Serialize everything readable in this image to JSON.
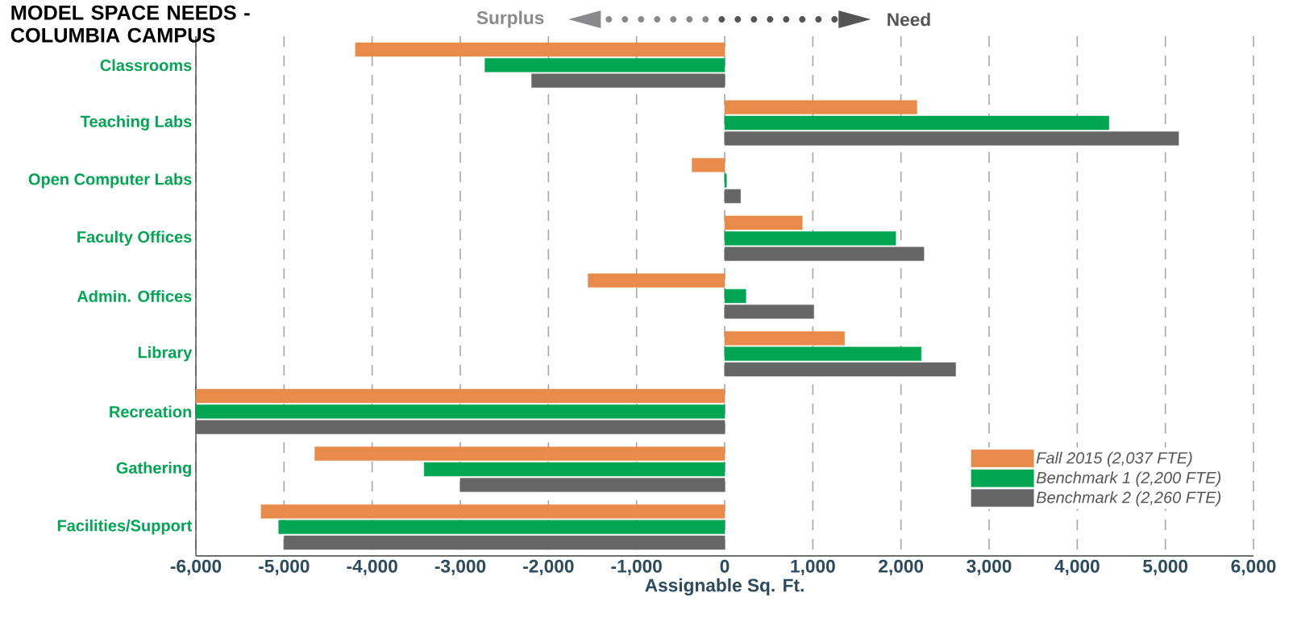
{
  "chart_data": {
    "type": "bar",
    "orientation": "horizontal",
    "title": "MODEL SPACE NEEDS - COLUMBIA CAMPUS",
    "xlabel": "Assignable Sq. Ft.",
    "annotations": [
      "Surplus",
      "Need"
    ],
    "categories": [
      "Classrooms",
      "Teaching Labs",
      "Open Computer Labs",
      "Faculty Offices",
      "Admin. Offices",
      "Library",
      "Recreation",
      "Gathering",
      "Facilities/Support"
    ],
    "series": [
      {
        "name": "Fall 2015 (2,037 FTE)",
        "color": "#e88b4a",
        "values": [
          -4190,
          2180,
          -370,
          880,
          -1550,
          1360,
          -6000,
          -4650,
          -5260
        ]
      },
      {
        "name": "Benchmark 1 (2,200 FTE)",
        "color": "#00a651",
        "values": [
          -2720,
          4360,
          20,
          1940,
          240,
          2230,
          -6000,
          -3410,
          -5060
        ]
      },
      {
        "name": "Benchmark 2 (2,260 FTE)",
        "color": "#666666",
        "values": [
          -2190,
          5150,
          180,
          2260,
          1010,
          2620,
          -6000,
          -3000,
          -5000
        ]
      }
    ],
    "xlim": [
      -6000,
      6000
    ],
    "xticks": [
      {
        "value": -6000,
        "label": "-6,000"
      },
      {
        "value": -5000,
        "label": "-5,000"
      },
      {
        "value": -4000,
        "label": "-4,000"
      },
      {
        "value": -3000,
        "label": "-3,000"
      },
      {
        "value": -2000,
        "label": "-2,000"
      },
      {
        "value": -1000,
        "label": "-1,000"
      },
      0,
      {
        "value": 1000,
        "label": "1,000"
      },
      {
        "value": 2000,
        "label": "2,000"
      },
      {
        "value": 3000,
        "label": "3,000"
      },
      {
        "value": 4000,
        "label": "4,000"
      },
      {
        "value": 5000,
        "label": "5,000"
      },
      {
        "value": 6000,
        "label": "6,000"
      }
    ],
    "grid": "x",
    "legend": "bottom right"
  }
}
